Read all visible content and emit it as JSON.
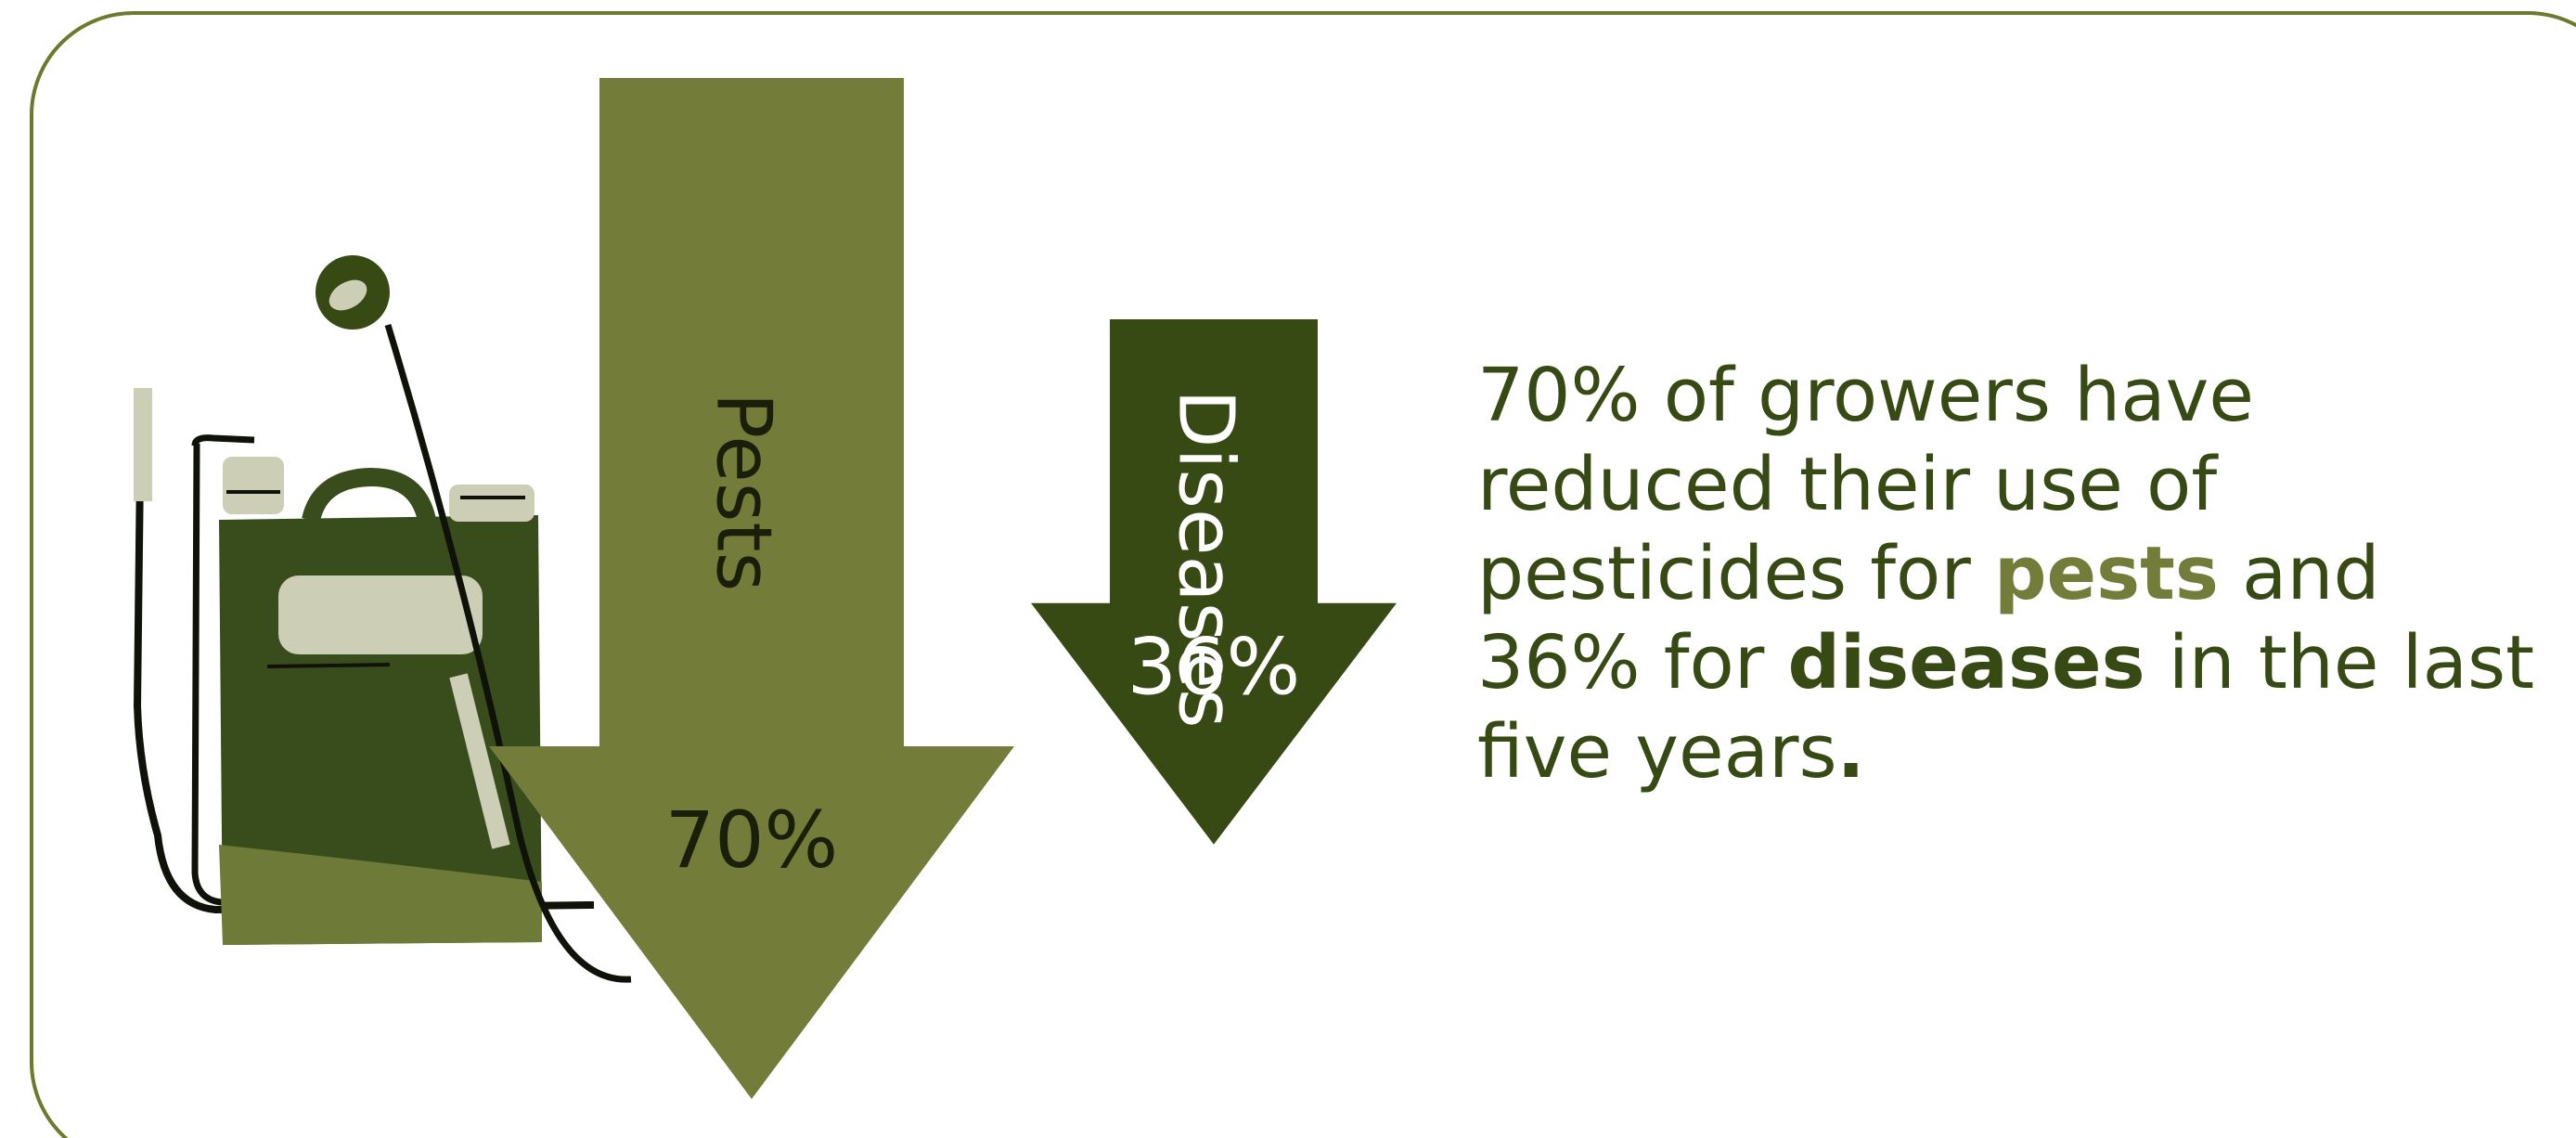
{
  "colors": {
    "pests": "#737c38",
    "diseases": "#384a14",
    "frame": "#6b7a2c",
    "sprayer_body": "#394c1b",
    "sprayer_light": "#cccfb6",
    "sprayer_dark": "#0f1209"
  },
  "icons": [
    "backpack-sprayer-icon"
  ],
  "chart_data": {
    "type": "bar",
    "orientation": "downward-arrows",
    "categories": [
      "Pests",
      "Diseases"
    ],
    "values": [
      70,
      36
    ],
    "value_labels": [
      "70%",
      "36%"
    ],
    "unit": "%"
  },
  "statement": {
    "line1": "70% of growers have",
    "line2": "reduced their use of",
    "line3_pre": "pesticides for ",
    "line3_bold": "pests",
    "line3_post": " and",
    "line4_pre": "36% for ",
    "line4_bold": "diseases",
    "line4_post": " in the last",
    "line5_pre": "five years",
    "line5_bold": "."
  }
}
